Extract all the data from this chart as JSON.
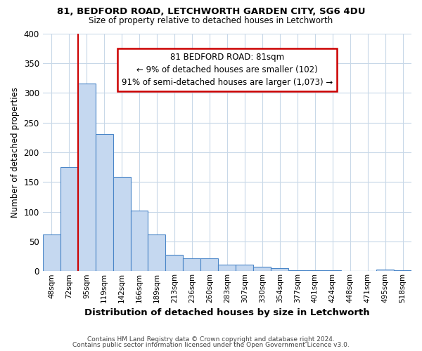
{
  "title1": "81, BEDFORD ROAD, LETCHWORTH GARDEN CITY, SG6 4DU",
  "title2": "Size of property relative to detached houses in Letchworth",
  "xlabel": "Distribution of detached houses by size in Letchworth",
  "ylabel": "Number of detached properties",
  "categories": [
    "48sqm",
    "72sqm",
    "95sqm",
    "119sqm",
    "142sqm",
    "166sqm",
    "189sqm",
    "213sqm",
    "236sqm",
    "260sqm",
    "283sqm",
    "307sqm",
    "330sqm",
    "354sqm",
    "377sqm",
    "401sqm",
    "424sqm",
    "448sqm",
    "471sqm",
    "495sqm",
    "518sqm"
  ],
  "values": [
    62,
    175,
    315,
    230,
    158,
    102,
    62,
    27,
    22,
    22,
    11,
    11,
    7,
    5,
    2,
    1,
    1,
    0,
    0,
    3,
    1
  ],
  "bar_color": "#c5d8f0",
  "bar_edge_color": "#4a86c8",
  "annotation_line1": "81 BEDFORD ROAD: 81sqm",
  "annotation_line2": "← 9% of detached houses are smaller (102)",
  "annotation_line3": "91% of semi-detached houses are larger (1,073) →",
  "annotation_box_color": "#ffffff",
  "annotation_box_edge_color": "#cc0000",
  "vline_color": "#cc0000",
  "vline_pos": 1.5,
  "ylim": [
    0,
    400
  ],
  "yticks": [
    0,
    50,
    100,
    150,
    200,
    250,
    300,
    350,
    400
  ],
  "footer1": "Contains HM Land Registry data © Crown copyright and database right 2024.",
  "footer2": "Contains public sector information licensed under the Open Government Licence v3.0.",
  "bg_color": "#ffffff",
  "grid_color": "#c8d8e8",
  "bar_width": 1.0
}
